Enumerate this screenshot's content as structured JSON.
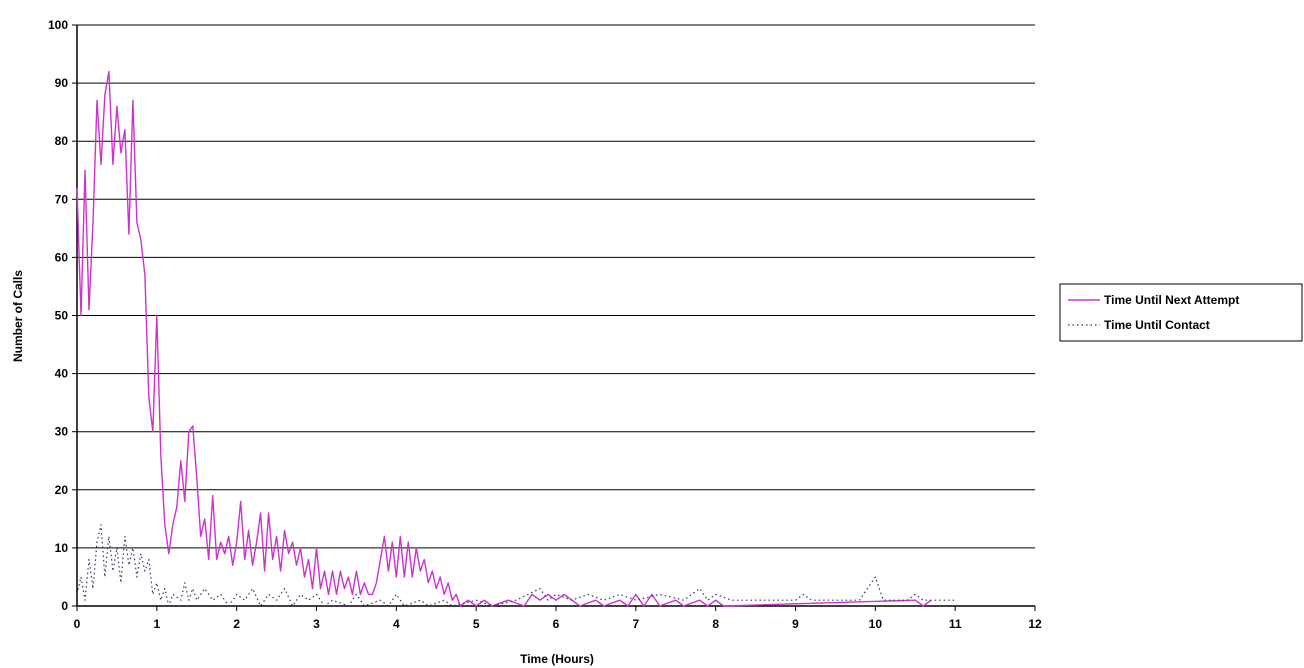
{
  "chart_data": {
    "type": "line",
    "title": "",
    "xlabel": "Time (Hours)",
    "ylabel": "Number of Calls",
    "xlim": [
      0,
      12
    ],
    "ylim": [
      0,
      100
    ],
    "x_ticks": [
      "0",
      "1",
      "2",
      "3",
      "4",
      "5",
      "6",
      "7",
      "8",
      "9",
      "10",
      "11",
      "12"
    ],
    "y_ticks": [
      "0",
      "10",
      "20",
      "30",
      "40",
      "50",
      "60",
      "70",
      "80",
      "90",
      "100"
    ],
    "grid": "horizontal",
    "legend_position": "right",
    "series": [
      {
        "name": "Time Until Next Attempt",
        "color": "#cc33cc",
        "style": "solid",
        "points": [
          [
            0.0,
            72
          ],
          [
            0.05,
            50
          ],
          [
            0.1,
            75
          ],
          [
            0.15,
            51
          ],
          [
            0.2,
            66
          ],
          [
            0.25,
            87
          ],
          [
            0.3,
            76
          ],
          [
            0.35,
            88
          ],
          [
            0.4,
            92
          ],
          [
            0.45,
            76
          ],
          [
            0.5,
            86
          ],
          [
            0.55,
            78
          ],
          [
            0.6,
            82
          ],
          [
            0.65,
            64
          ],
          [
            0.7,
            87
          ],
          [
            0.75,
            66
          ],
          [
            0.8,
            63
          ],
          [
            0.85,
            57
          ],
          [
            0.9,
            36
          ],
          [
            0.95,
            30
          ],
          [
            1.0,
            50
          ],
          [
            1.05,
            26
          ],
          [
            1.1,
            14
          ],
          [
            1.15,
            9
          ],
          [
            1.2,
            14
          ],
          [
            1.25,
            17
          ],
          [
            1.3,
            25
          ],
          [
            1.35,
            18
          ],
          [
            1.4,
            30
          ],
          [
            1.45,
            31
          ],
          [
            1.5,
            22
          ],
          [
            1.55,
            12
          ],
          [
            1.6,
            15
          ],
          [
            1.65,
            8
          ],
          [
            1.7,
            19
          ],
          [
            1.75,
            8
          ],
          [
            1.8,
            11
          ],
          [
            1.85,
            9
          ],
          [
            1.9,
            12
          ],
          [
            1.95,
            7
          ],
          [
            2.0,
            11
          ],
          [
            2.05,
            18
          ],
          [
            2.1,
            8
          ],
          [
            2.15,
            13
          ],
          [
            2.2,
            7
          ],
          [
            2.25,
            11
          ],
          [
            2.3,
            16
          ],
          [
            2.35,
            6
          ],
          [
            2.4,
            16
          ],
          [
            2.45,
            8
          ],
          [
            2.5,
            12
          ],
          [
            2.55,
            6
          ],
          [
            2.6,
            13
          ],
          [
            2.65,
            9
          ],
          [
            2.7,
            11
          ],
          [
            2.75,
            7
          ],
          [
            2.8,
            10
          ],
          [
            2.85,
            5
          ],
          [
            2.9,
            8
          ],
          [
            2.95,
            3
          ],
          [
            3.0,
            10
          ],
          [
            3.05,
            3
          ],
          [
            3.1,
            6
          ],
          [
            3.15,
            2
          ],
          [
            3.2,
            6
          ],
          [
            3.25,
            2
          ],
          [
            3.3,
            6
          ],
          [
            3.35,
            3
          ],
          [
            3.4,
            5
          ],
          [
            3.45,
            2
          ],
          [
            3.5,
            6
          ],
          [
            3.55,
            2
          ],
          [
            3.6,
            4
          ],
          [
            3.65,
            2
          ],
          [
            3.7,
            2
          ],
          [
            3.75,
            4
          ],
          [
            3.8,
            8
          ],
          [
            3.85,
            12
          ],
          [
            3.9,
            6
          ],
          [
            3.95,
            11
          ],
          [
            4.0,
            5
          ],
          [
            4.05,
            12
          ],
          [
            4.1,
            5
          ],
          [
            4.15,
            11
          ],
          [
            4.2,
            5
          ],
          [
            4.25,
            10
          ],
          [
            4.3,
            6
          ],
          [
            4.35,
            8
          ],
          [
            4.4,
            4
          ],
          [
            4.45,
            6
          ],
          [
            4.5,
            3
          ],
          [
            4.55,
            5
          ],
          [
            4.6,
            2
          ],
          [
            4.65,
            4
          ],
          [
            4.7,
            1
          ],
          [
            4.75,
            2
          ],
          [
            4.8,
            0
          ],
          [
            4.9,
            1
          ],
          [
            5.0,
            0
          ],
          [
            5.1,
            1
          ],
          [
            5.2,
            0
          ],
          [
            5.4,
            1
          ],
          [
            5.6,
            0
          ],
          [
            5.7,
            2
          ],
          [
            5.8,
            1
          ],
          [
            5.9,
            2
          ],
          [
            6.0,
            1
          ],
          [
            6.1,
            2
          ],
          [
            6.2,
            1
          ],
          [
            6.3,
            0
          ],
          [
            6.5,
            1
          ],
          [
            6.6,
            0
          ],
          [
            6.8,
            1
          ],
          [
            6.9,
            0
          ],
          [
            7.0,
            2
          ],
          [
            7.1,
            0
          ],
          [
            7.2,
            2
          ],
          [
            7.3,
            0
          ],
          [
            7.5,
            1
          ],
          [
            7.6,
            0
          ],
          [
            7.8,
            1
          ],
          [
            7.9,
            0
          ],
          [
            8.0,
            1
          ],
          [
            8.1,
            0
          ],
          [
            10.5,
            1
          ],
          [
            10.6,
            0
          ],
          [
            10.7,
            1
          ]
        ]
      },
      {
        "name": "Time Until Contact",
        "color": "#333366",
        "style": "dotted",
        "points": [
          [
            0.0,
            2
          ],
          [
            0.05,
            5
          ],
          [
            0.1,
            1
          ],
          [
            0.15,
            8
          ],
          [
            0.2,
            3
          ],
          [
            0.25,
            11
          ],
          [
            0.3,
            14
          ],
          [
            0.35,
            5
          ],
          [
            0.4,
            12
          ],
          [
            0.45,
            6
          ],
          [
            0.5,
            10
          ],
          [
            0.55,
            4
          ],
          [
            0.6,
            12
          ],
          [
            0.65,
            7
          ],
          [
            0.7,
            10
          ],
          [
            0.75,
            5
          ],
          [
            0.8,
            9
          ],
          [
            0.85,
            6
          ],
          [
            0.9,
            8
          ],
          [
            0.95,
            2
          ],
          [
            1.0,
            4
          ],
          [
            1.05,
            1
          ],
          [
            1.1,
            3
          ],
          [
            1.15,
            0
          ],
          [
            1.2,
            2
          ],
          [
            1.3,
            1
          ],
          [
            1.35,
            4
          ],
          [
            1.4,
            1
          ],
          [
            1.45,
            3
          ],
          [
            1.5,
            1
          ],
          [
            1.6,
            3
          ],
          [
            1.7,
            1
          ],
          [
            1.8,
            2
          ],
          [
            1.9,
            0
          ],
          [
            2.0,
            2
          ],
          [
            2.1,
            1
          ],
          [
            2.2,
            3
          ],
          [
            2.3,
            0
          ],
          [
            2.4,
            2
          ],
          [
            2.5,
            1
          ],
          [
            2.6,
            3
          ],
          [
            2.7,
            0
          ],
          [
            2.8,
            2
          ],
          [
            2.9,
            1
          ],
          [
            3.0,
            2
          ],
          [
            3.1,
            0
          ],
          [
            3.2,
            1
          ],
          [
            3.4,
            0
          ],
          [
            3.5,
            2
          ],
          [
            3.6,
            0
          ],
          [
            3.8,
            1
          ],
          [
            3.9,
            0
          ],
          [
            4.0,
            2
          ],
          [
            4.1,
            0
          ],
          [
            4.3,
            1
          ],
          [
            4.4,
            0
          ],
          [
            4.6,
            1
          ],
          [
            4.7,
            0
          ],
          [
            5.0,
            1
          ],
          [
            5.2,
            0
          ],
          [
            5.5,
            1
          ],
          [
            5.8,
            3
          ],
          [
            5.9,
            1
          ],
          [
            6.0,
            2
          ],
          [
            6.2,
            1
          ],
          [
            6.4,
            2
          ],
          [
            6.6,
            1
          ],
          [
            6.8,
            2
          ],
          [
            7.0,
            1
          ],
          [
            7.3,
            2
          ],
          [
            7.6,
            1
          ],
          [
            7.8,
            3
          ],
          [
            7.9,
            1
          ],
          [
            8.0,
            2
          ],
          [
            8.2,
            1
          ],
          [
            9.0,
            1
          ],
          [
            9.1,
            2
          ],
          [
            9.2,
            1
          ],
          [
            9.8,
            1
          ],
          [
            10.0,
            5
          ],
          [
            10.1,
            1
          ],
          [
            10.4,
            1
          ],
          [
            10.5,
            2
          ],
          [
            10.6,
            1
          ],
          [
            11.0,
            1
          ]
        ]
      }
    ]
  }
}
